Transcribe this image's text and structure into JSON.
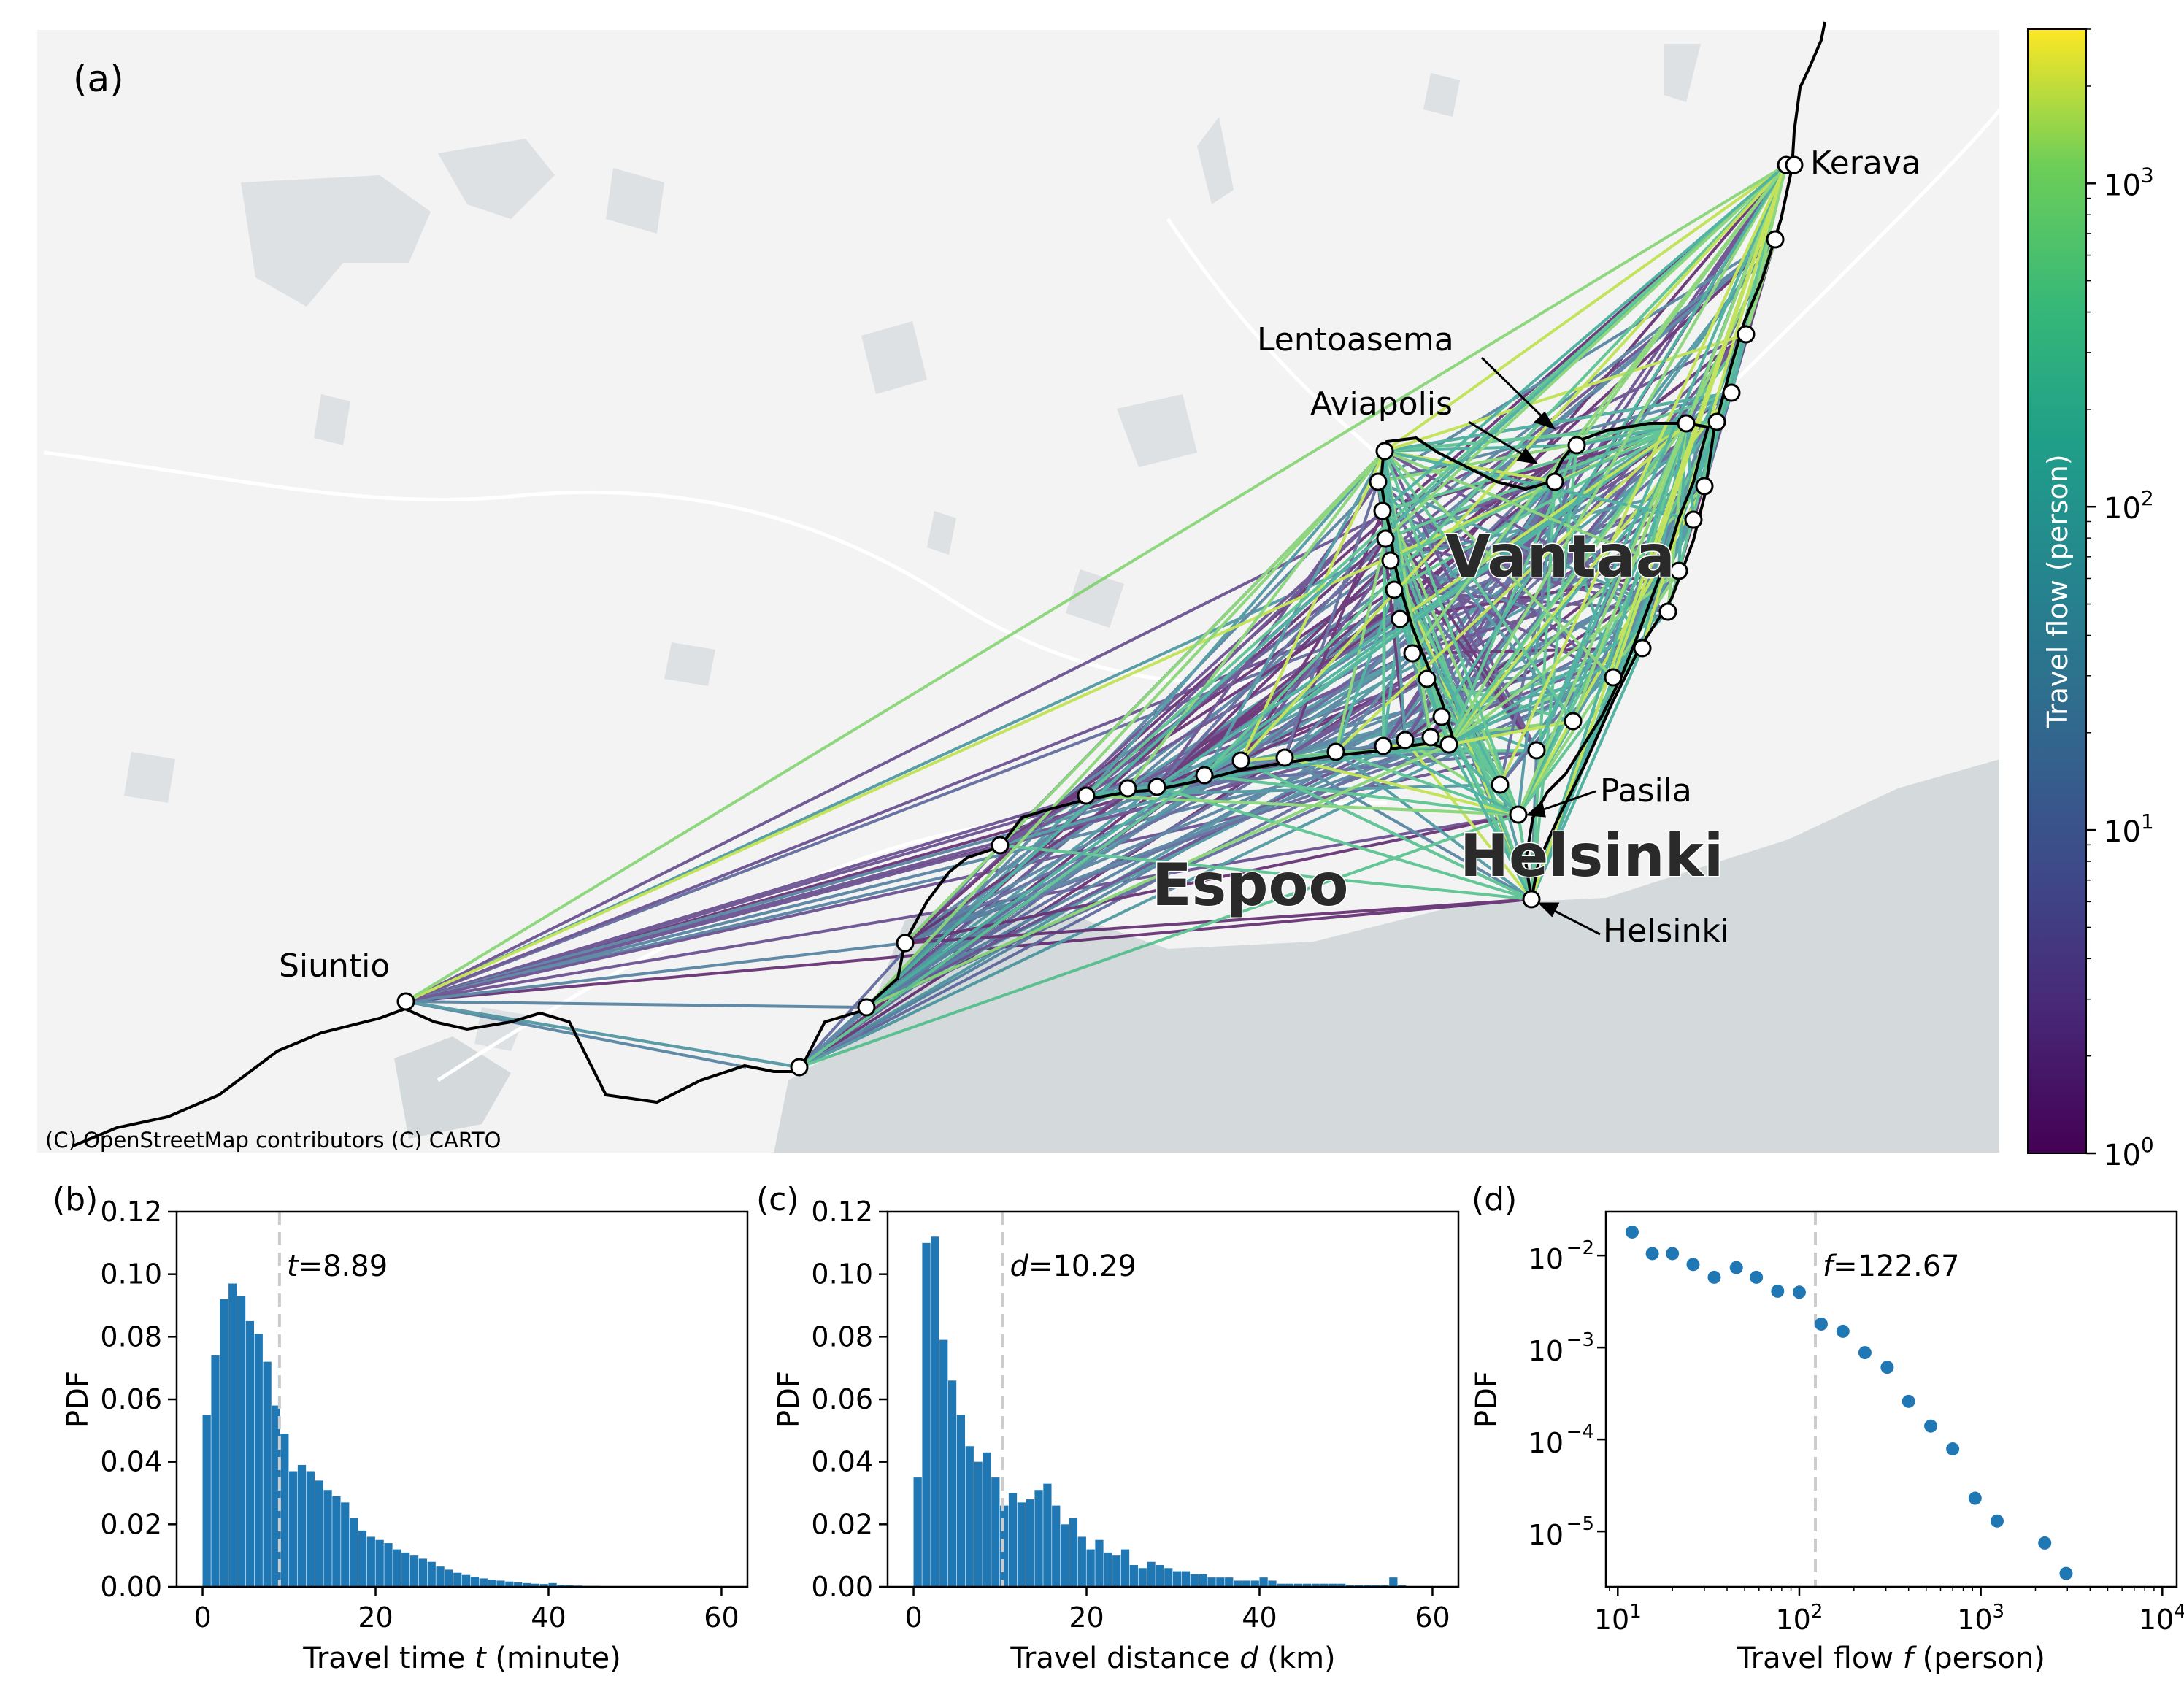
{
  "chart_data": [
    {
      "type": "map",
      "panel_label": "(a)",
      "attribution": "(C) OpenStreetMap contributors (C) CARTO",
      "city_labels": [
        "Vantaa",
        "Espoo",
        "Helsinki"
      ],
      "station_labels": [
        "Kerava",
        "Lentoasema",
        "Aviapolis",
        "Pasila",
        "Helsinki",
        "Siuntio"
      ],
      "colorbar": {
        "label": "Travel flow (person)",
        "scale": "log",
        "range": [
          1,
          3000
        ],
        "colormap": "viridis",
        "ticks": [
          {
            "base": "10",
            "exp": "0",
            "value": 1
          },
          {
            "base": "10",
            "exp": "1",
            "value": 10
          },
          {
            "base": "10",
            "exp": "2",
            "value": 100
          },
          {
            "base": "10",
            "exp": "3",
            "value": 1000
          }
        ]
      }
    },
    {
      "type": "bar",
      "panel_label": "(b)",
      "xlabel_pre": "Travel time ",
      "xlabel_var": "t",
      "xlabel_post": " (minute)",
      "ylabel": "PDF",
      "xlim": [
        -3,
        63
      ],
      "ylim": [
        0,
        0.12
      ],
      "xticks": [
        "0",
        "20",
        "40",
        "60"
      ],
      "yticks": [
        "0.00",
        "0.02",
        "0.04",
        "0.06",
        "0.08",
        "0.10",
        "0.12"
      ],
      "bin_start": 0,
      "bin_width": 1,
      "values": [
        0.055,
        0.074,
        0.092,
        0.097,
        0.093,
        0.085,
        0.081,
        0.072,
        0.058,
        0.049,
        0.037,
        0.039,
        0.037,
        0.034,
        0.031,
        0.029,
        0.027,
        0.022,
        0.018,
        0.016,
        0.015,
        0.014,
        0.012,
        0.011,
        0.01,
        0.009,
        0.008,
        0.0065,
        0.0055,
        0.0045,
        0.0038,
        0.0032,
        0.0027,
        0.0023,
        0.002,
        0.0017,
        0.0014,
        0.0012,
        0.001,
        0.0009,
        0.0012,
        0.0007,
        0.0005,
        0.0004,
        0.0003,
        0.0003,
        0.0002,
        0.0002,
        0.0001,
        0.0001
      ],
      "mean_var": "t",
      "mean_text": "=8.89",
      "mean_value": 8.89
    },
    {
      "type": "bar",
      "panel_label": "(c)",
      "xlabel_pre": "Travel distance ",
      "xlabel_var": "d",
      "xlabel_post": " (km)",
      "ylabel": "PDF",
      "xlim": [
        -3,
        63
      ],
      "ylim": [
        0,
        0.12
      ],
      "xticks": [
        "0",
        "20",
        "40",
        "60"
      ],
      "yticks": [
        "0.00",
        "0.02",
        "0.04",
        "0.06",
        "0.08",
        "0.10",
        "0.12"
      ],
      "bin_start": 0,
      "bin_width": 1,
      "values": [
        0.035,
        0.11,
        0.112,
        0.079,
        0.066,
        0.055,
        0.045,
        0.04,
        0.043,
        0.035,
        0.026,
        0.03,
        0.027,
        0.028,
        0.031,
        0.033,
        0.026,
        0.02,
        0.022,
        0.016,
        0.012,
        0.015,
        0.011,
        0.01,
        0.012,
        0.007,
        0.006,
        0.008,
        0.007,
        0.006,
        0.005,
        0.005,
        0.004,
        0.004,
        0.003,
        0.003,
        0.003,
        0.002,
        0.002,
        0.002,
        0.003,
        0.002,
        0.001,
        0.001,
        0.001,
        0.001,
        0.001,
        0.001,
        0.001,
        0.001,
        0.0005,
        0.0005,
        0.0005,
        0.0005,
        0.0005,
        0.003,
        0.0005
      ],
      "mean_var": "d",
      "mean_text": "=10.29",
      "mean_value": 10.29
    },
    {
      "type": "scatter",
      "panel_label": "(d)",
      "xlabel_pre": "Travel flow ",
      "xlabel_var": "f",
      "xlabel_post": " (person)",
      "ylabel": "PDF",
      "xscale": "log",
      "yscale": "log",
      "xlim": [
        8.6,
        12000
      ],
      "ylim": [
        2.5e-06,
        0.03
      ],
      "xticks": [
        {
          "base": "10",
          "exp": "1",
          "value": 10
        },
        {
          "base": "10",
          "exp": "2",
          "value": 100
        },
        {
          "base": "10",
          "exp": "3",
          "value": 1000
        },
        {
          "base": "10",
          "exp": "4",
          "value": 10000
        }
      ],
      "yticks": [
        {
          "base": "10",
          "exp": "−5",
          "value": 1e-05
        },
        {
          "base": "10",
          "exp": "−4",
          "value": 0.0001
        },
        {
          "base": "10",
          "exp": "−3",
          "value": 0.001
        },
        {
          "base": "10",
          "exp": "−2",
          "value": 0.01
        }
      ],
      "x": [
        12,
        15.5,
        20,
        26,
        34,
        45,
        58,
        76,
        100,
        132,
        174,
        230,
        305,
        400,
        530,
        700,
        930,
        1230,
        2250,
        2950
      ],
      "y": [
        0.018,
        0.0105,
        0.0105,
        0.008,
        0.0058,
        0.0074,
        0.0058,
        0.0041,
        0.004,
        0.0018,
        0.0015,
        0.00088,
        0.00061,
        0.00026,
        0.00014,
        7.9e-05,
        2.3e-05,
        1.3e-05,
        7.5e-06,
        3.5e-06
      ],
      "mean_var": "f",
      "mean_text": "=122.67",
      "mean_value": 122.67
    }
  ]
}
